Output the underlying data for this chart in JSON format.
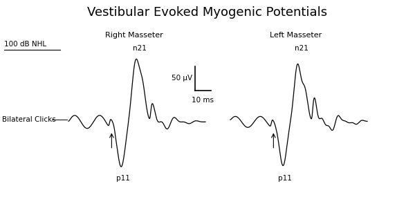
{
  "title": "Vestibular Evoked Myogenic Potentials",
  "title_fontsize": 13,
  "label_100dB": "100 dB NHL",
  "label_bilateral": "Bilateral Clicks",
  "label_right": "Right Masseter",
  "label_left": "Left Masseter",
  "label_n21_right": "n21",
  "label_p11_right": "p11",
  "label_n21_left": "n21",
  "label_p11_left": "p11",
  "scale_uV": "50 μV",
  "scale_ms": "10 ms",
  "bg_color": "#ffffff",
  "line_color": "#000000",
  "xlim": [
    0,
    10
  ],
  "ylim": [
    -1.5,
    2.0
  ],
  "figwidth": 6.0,
  "figheight": 2.98,
  "dpi": 100
}
